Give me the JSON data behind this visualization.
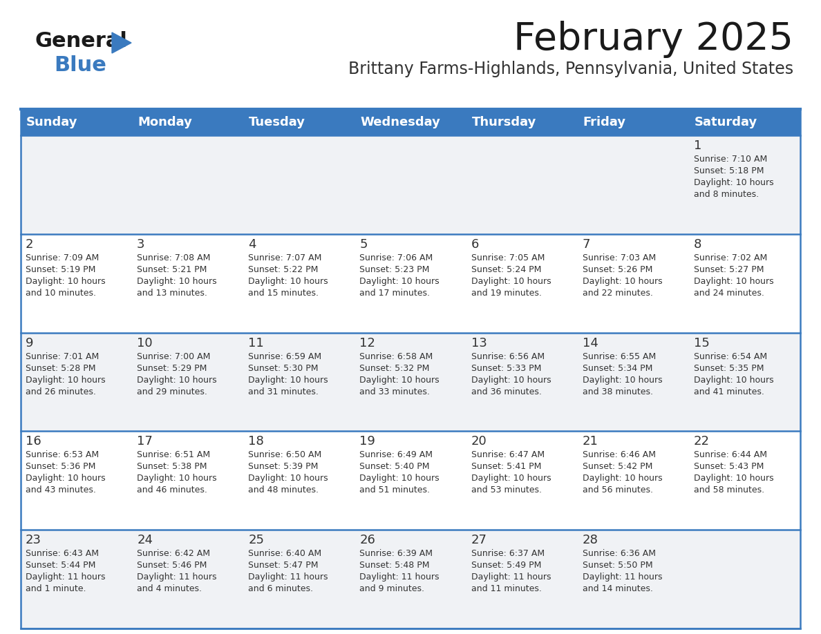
{
  "title": "February 2025",
  "subtitle": "Brittany Farms-Highlands, Pennsylvania, United States",
  "header_bg": "#3a7abf",
  "header_text": "#ffffff",
  "cell_bg_light": "#f0f2f5",
  "cell_bg_white": "#ffffff",
  "border_color": "#3a7abf",
  "day_headers": [
    "Sunday",
    "Monday",
    "Tuesday",
    "Wednesday",
    "Thursday",
    "Friday",
    "Saturday"
  ],
  "title_color": "#1a1a1a",
  "subtitle_color": "#333333",
  "cell_text_color": "#333333",
  "day_num_color": "#333333",
  "logo_black": "#1a1a1a",
  "logo_blue": "#3a7abf",
  "weeks": [
    [
      {
        "day": "",
        "info": ""
      },
      {
        "day": "",
        "info": ""
      },
      {
        "day": "",
        "info": ""
      },
      {
        "day": "",
        "info": ""
      },
      {
        "day": "",
        "info": ""
      },
      {
        "day": "",
        "info": ""
      },
      {
        "day": "1",
        "info": "Sunrise: 7:10 AM\nSunset: 5:18 PM\nDaylight: 10 hours\nand 8 minutes."
      }
    ],
    [
      {
        "day": "2",
        "info": "Sunrise: 7:09 AM\nSunset: 5:19 PM\nDaylight: 10 hours\nand 10 minutes."
      },
      {
        "day": "3",
        "info": "Sunrise: 7:08 AM\nSunset: 5:21 PM\nDaylight: 10 hours\nand 13 minutes."
      },
      {
        "day": "4",
        "info": "Sunrise: 7:07 AM\nSunset: 5:22 PM\nDaylight: 10 hours\nand 15 minutes."
      },
      {
        "day": "5",
        "info": "Sunrise: 7:06 AM\nSunset: 5:23 PM\nDaylight: 10 hours\nand 17 minutes."
      },
      {
        "day": "6",
        "info": "Sunrise: 7:05 AM\nSunset: 5:24 PM\nDaylight: 10 hours\nand 19 minutes."
      },
      {
        "day": "7",
        "info": "Sunrise: 7:03 AM\nSunset: 5:26 PM\nDaylight: 10 hours\nand 22 minutes."
      },
      {
        "day": "8",
        "info": "Sunrise: 7:02 AM\nSunset: 5:27 PM\nDaylight: 10 hours\nand 24 minutes."
      }
    ],
    [
      {
        "day": "9",
        "info": "Sunrise: 7:01 AM\nSunset: 5:28 PM\nDaylight: 10 hours\nand 26 minutes."
      },
      {
        "day": "10",
        "info": "Sunrise: 7:00 AM\nSunset: 5:29 PM\nDaylight: 10 hours\nand 29 minutes."
      },
      {
        "day": "11",
        "info": "Sunrise: 6:59 AM\nSunset: 5:30 PM\nDaylight: 10 hours\nand 31 minutes."
      },
      {
        "day": "12",
        "info": "Sunrise: 6:58 AM\nSunset: 5:32 PM\nDaylight: 10 hours\nand 33 minutes."
      },
      {
        "day": "13",
        "info": "Sunrise: 6:56 AM\nSunset: 5:33 PM\nDaylight: 10 hours\nand 36 minutes."
      },
      {
        "day": "14",
        "info": "Sunrise: 6:55 AM\nSunset: 5:34 PM\nDaylight: 10 hours\nand 38 minutes."
      },
      {
        "day": "15",
        "info": "Sunrise: 6:54 AM\nSunset: 5:35 PM\nDaylight: 10 hours\nand 41 minutes."
      }
    ],
    [
      {
        "day": "16",
        "info": "Sunrise: 6:53 AM\nSunset: 5:36 PM\nDaylight: 10 hours\nand 43 minutes."
      },
      {
        "day": "17",
        "info": "Sunrise: 6:51 AM\nSunset: 5:38 PM\nDaylight: 10 hours\nand 46 minutes."
      },
      {
        "day": "18",
        "info": "Sunrise: 6:50 AM\nSunset: 5:39 PM\nDaylight: 10 hours\nand 48 minutes."
      },
      {
        "day": "19",
        "info": "Sunrise: 6:49 AM\nSunset: 5:40 PM\nDaylight: 10 hours\nand 51 minutes."
      },
      {
        "day": "20",
        "info": "Sunrise: 6:47 AM\nSunset: 5:41 PM\nDaylight: 10 hours\nand 53 minutes."
      },
      {
        "day": "21",
        "info": "Sunrise: 6:46 AM\nSunset: 5:42 PM\nDaylight: 10 hours\nand 56 minutes."
      },
      {
        "day": "22",
        "info": "Sunrise: 6:44 AM\nSunset: 5:43 PM\nDaylight: 10 hours\nand 58 minutes."
      }
    ],
    [
      {
        "day": "23",
        "info": "Sunrise: 6:43 AM\nSunset: 5:44 PM\nDaylight: 11 hours\nand 1 minute."
      },
      {
        "day": "24",
        "info": "Sunrise: 6:42 AM\nSunset: 5:46 PM\nDaylight: 11 hours\nand 4 minutes."
      },
      {
        "day": "25",
        "info": "Sunrise: 6:40 AM\nSunset: 5:47 PM\nDaylight: 11 hours\nand 6 minutes."
      },
      {
        "day": "26",
        "info": "Sunrise: 6:39 AM\nSunset: 5:48 PM\nDaylight: 11 hours\nand 9 minutes."
      },
      {
        "day": "27",
        "info": "Sunrise: 6:37 AM\nSunset: 5:49 PM\nDaylight: 11 hours\nand 11 minutes."
      },
      {
        "day": "28",
        "info": "Sunrise: 6:36 AM\nSunset: 5:50 PM\nDaylight: 11 hours\nand 14 minutes."
      },
      {
        "day": "",
        "info": ""
      }
    ]
  ]
}
